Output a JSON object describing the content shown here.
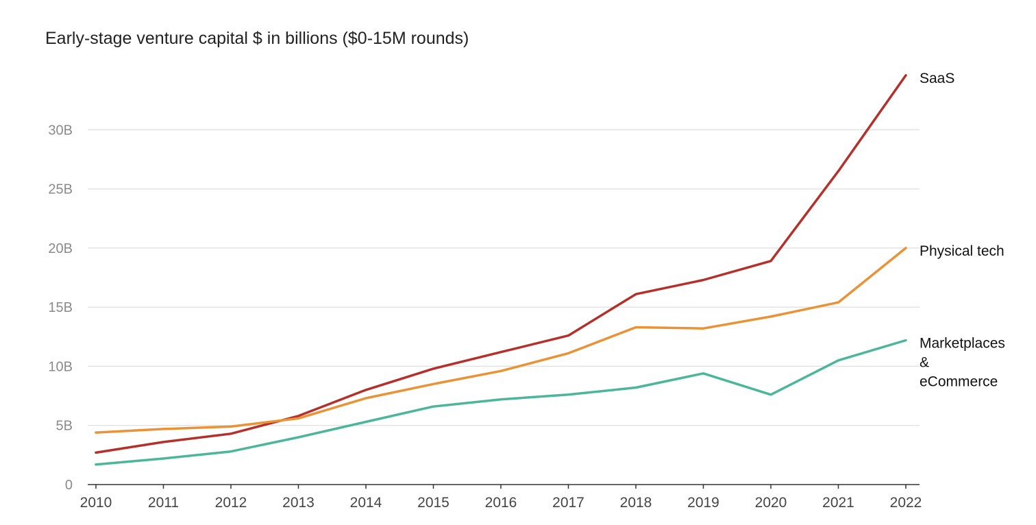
{
  "chart_data": {
    "type": "line",
    "title": "Early-stage venture capital $ in billions ($0-15M rounds)",
    "xlabel": "",
    "ylabel": "",
    "x": [
      "2010",
      "2011",
      "2012",
      "2013",
      "2014",
      "2015",
      "2016",
      "2017",
      "2018",
      "2019",
      "2020",
      "2021",
      "2022"
    ],
    "ylim": [
      0,
      35
    ],
    "yticks": [
      0,
      5,
      10,
      15,
      20,
      25,
      30
    ],
    "ytick_labels": [
      "0",
      "5B",
      "10B",
      "15B",
      "20B",
      "25B",
      "30B"
    ],
    "grid": true,
    "legend": "inline labels at right end of each series",
    "series": [
      {
        "name": "SaaS",
        "label_lines": [
          "SaaS"
        ],
        "color": "#b5302a",
        "values": [
          2.7,
          3.6,
          4.3,
          5.8,
          8.0,
          9.8,
          11.2,
          12.6,
          16.1,
          17.3,
          18.9,
          26.5,
          34.6
        ]
      },
      {
        "name": "Physical tech",
        "label_lines": [
          "Physical tech"
        ],
        "color": "#ea9236",
        "values": [
          4.4,
          4.7,
          4.9,
          5.6,
          7.3,
          8.5,
          9.6,
          11.1,
          13.3,
          13.2,
          14.2,
          15.4,
          20.0
        ]
      },
      {
        "name": "Marketplaces & eCommerce",
        "label_lines": [
          "Marketplaces",
          "&",
          "eCommerce"
        ],
        "color": "#4bb69a",
        "values": [
          1.7,
          2.2,
          2.8,
          4.0,
          5.3,
          6.6,
          7.2,
          7.6,
          8.2,
          9.4,
          7.6,
          10.5,
          12.2
        ]
      }
    ]
  }
}
